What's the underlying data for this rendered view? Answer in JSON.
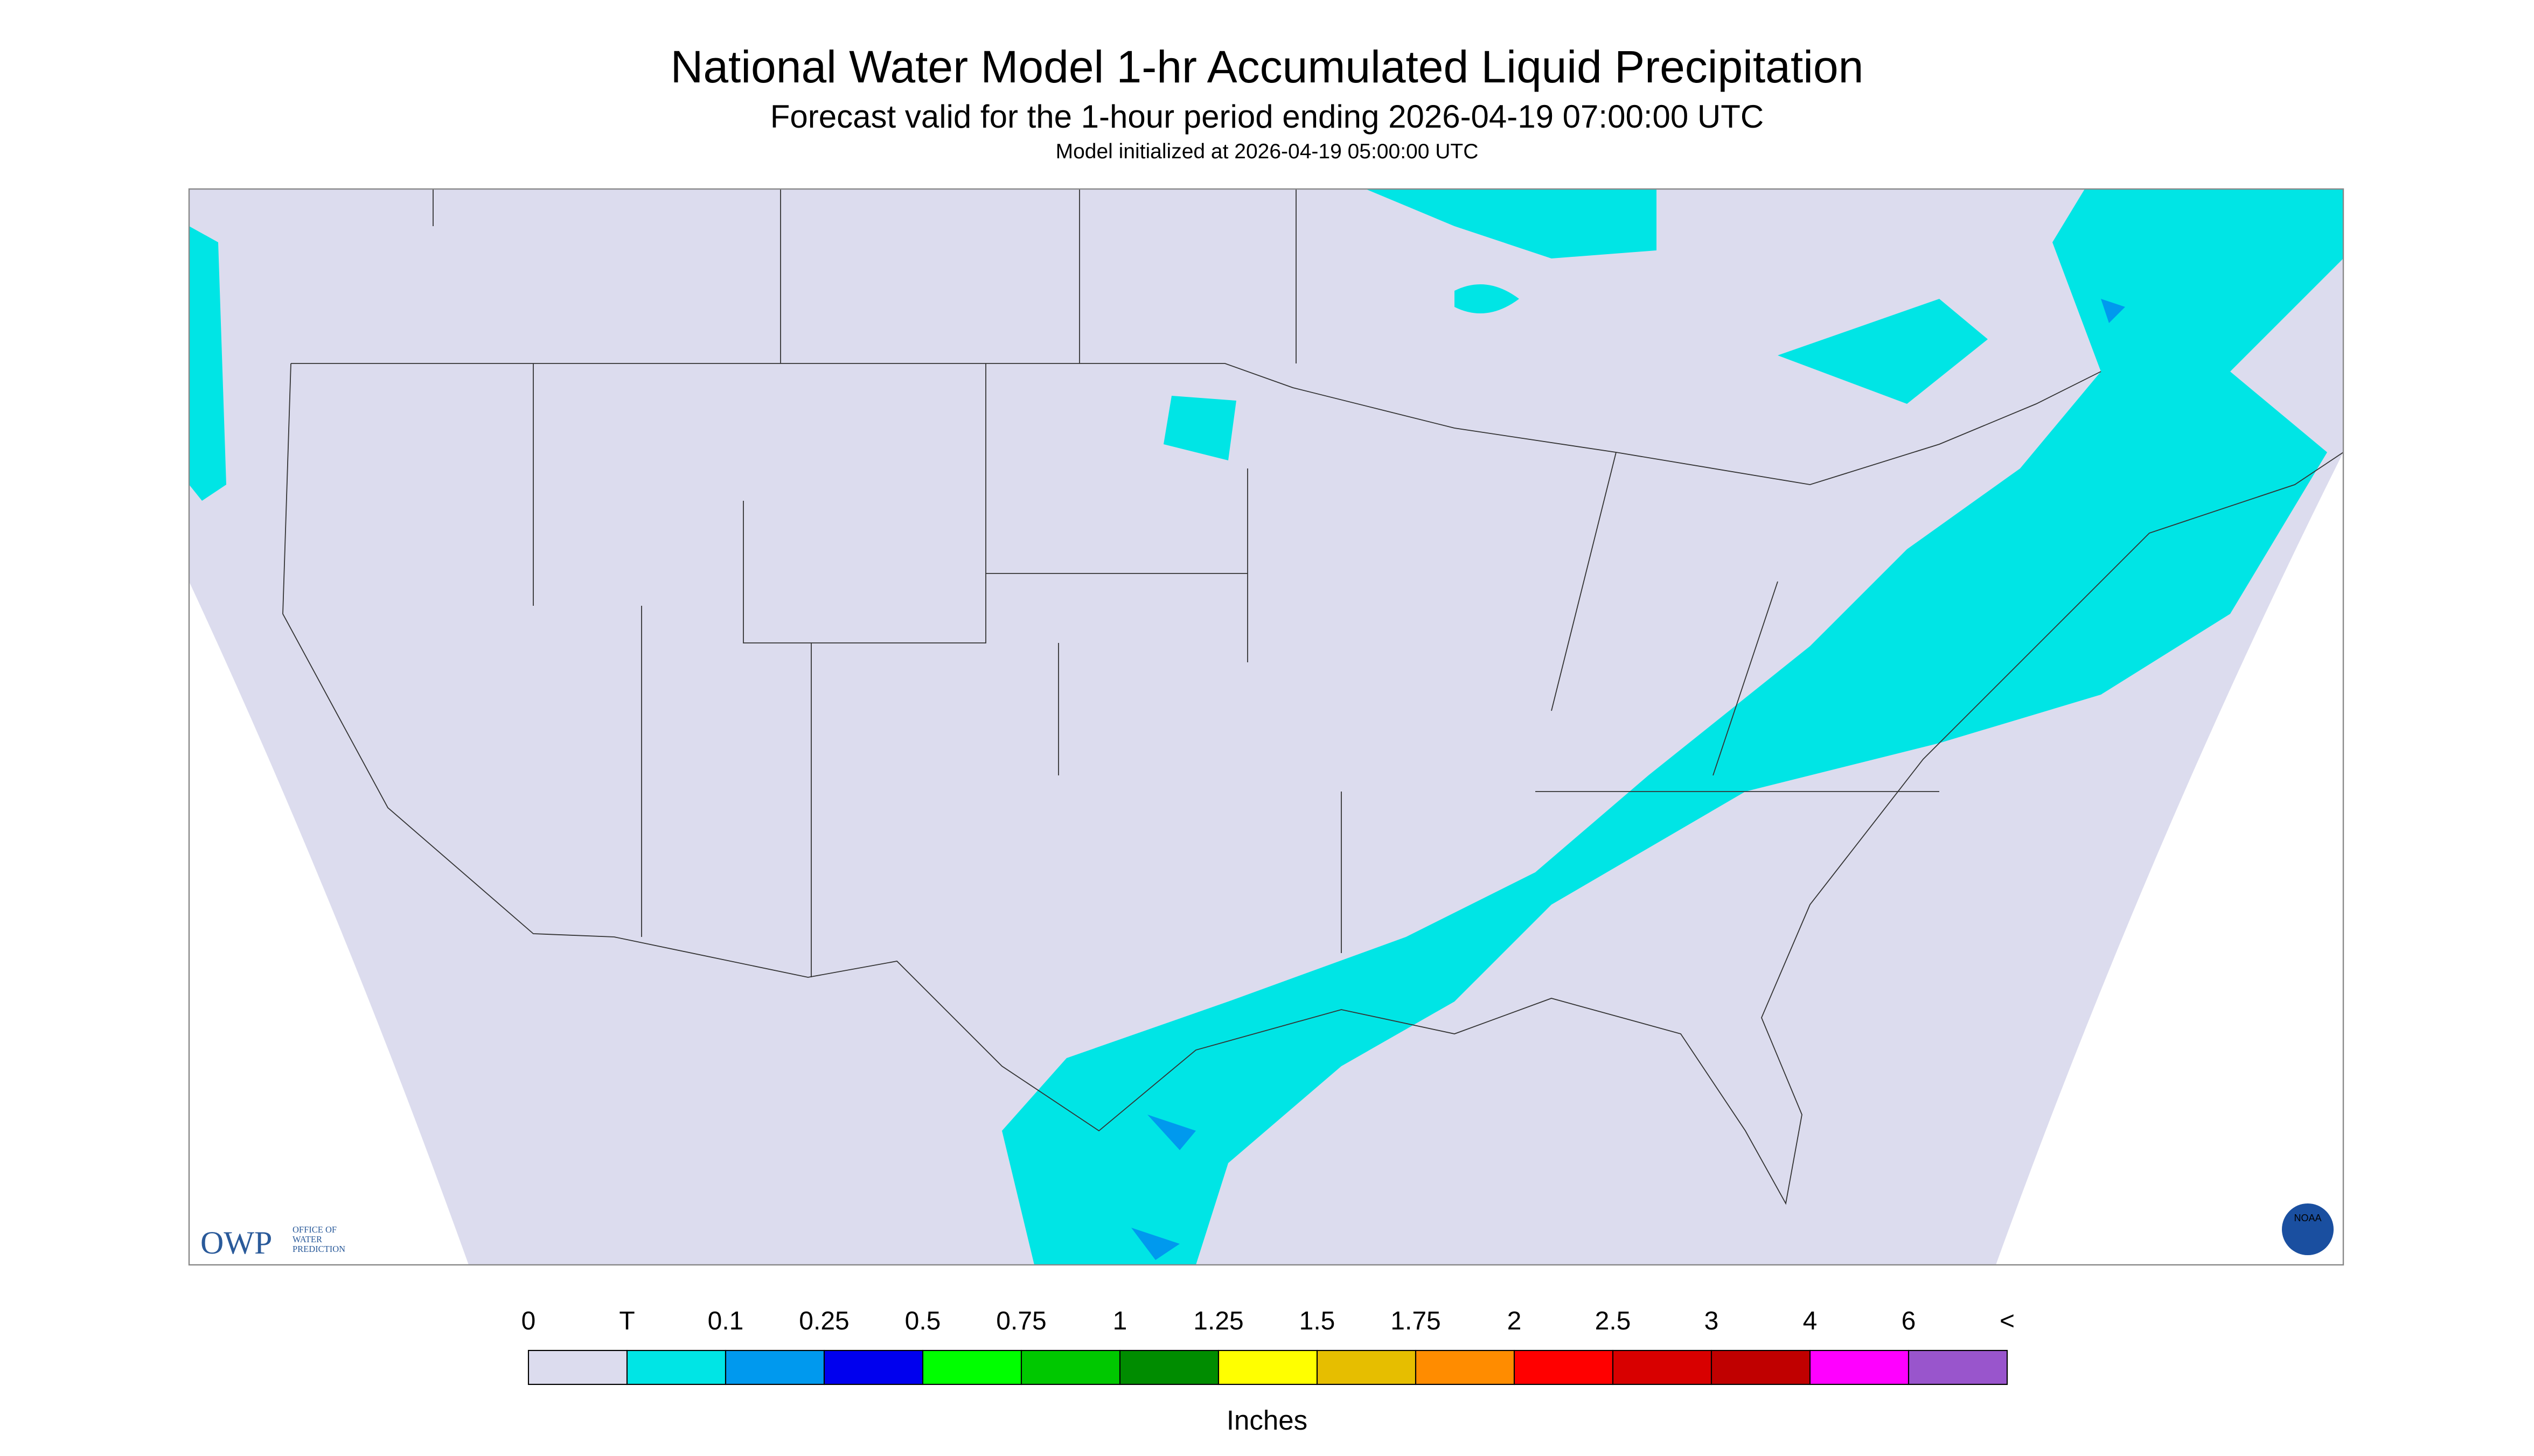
{
  "header": {
    "title": "National Water Model 1-hr Accumulated Liquid Precipitation",
    "subtitle": "Forecast valid for the 1-hour period ending 2026-04-19 07:00:00 UTC",
    "note": "Model initialized at 2026-04-19 05:00:00 UTC"
  },
  "logos": {
    "owp": "OWP",
    "owp_lines": [
      "OFFICE OF",
      "WATER",
      "PREDICTION"
    ],
    "noaa": "NOAA"
  },
  "legend": {
    "labels": [
      "0",
      "T",
      "0.1",
      "0.25",
      "0.5",
      "0.75",
      "1",
      "1.25",
      "1.5",
      "1.75",
      "2",
      "2.5",
      "3",
      "4",
      "6",
      "<"
    ],
    "colors": [
      "#dcdcee",
      "#00e5e5",
      "#0099ee",
      "#0000ee",
      "#00ff00",
      "#00c800",
      "#008c00",
      "#ffff00",
      "#e6be00",
      "#ff8c00",
      "#ff0000",
      "#d80000",
      "#c00000",
      "#ff00ff",
      "#9955cc"
    ],
    "unit": "Inches"
  }
}
